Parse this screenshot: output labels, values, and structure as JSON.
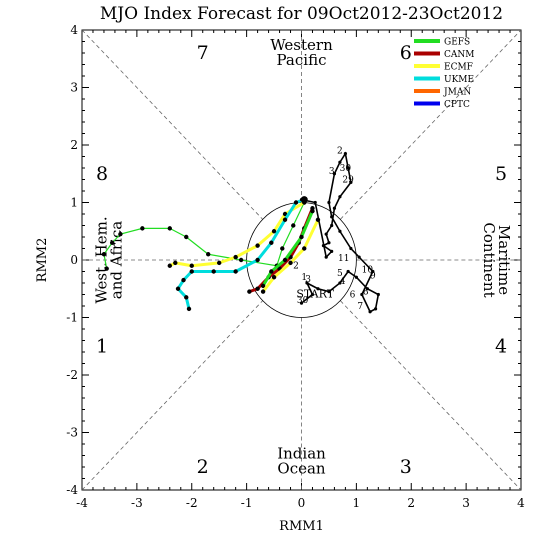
{
  "title": "MJO Index Forecast for 09Oct2012-23Oct2012",
  "chart_data": {
    "type": "scatter",
    "title": "MJO Index Forecast for 09Oct2012-23Oct2012",
    "xlabel": "RMM1",
    "ylabel": "RMM2",
    "xlim": [
      -4,
      4
    ],
    "ylim": [
      -4,
      4
    ],
    "xticks": [
      "-4",
      "-3",
      "-2",
      "-1",
      "0",
      "1",
      "2",
      "3",
      "4"
    ],
    "yticks": [
      "-4",
      "-3",
      "-2",
      "-1",
      "0",
      "1",
      "2",
      "3",
      "4"
    ],
    "unit_circle_radius": 1,
    "phase_numbers": [
      {
        "label": "7",
        "x": -1.8,
        "y": 3.6
      },
      {
        "label": "6",
        "x": 1.9,
        "y": 3.6
      },
      {
        "label": "8",
        "x": -4.2,
        "y": 1.5
      },
      {
        "label": "5",
        "x": 4.2,
        "y": 1.5
      },
      {
        "label": "1",
        "x": -4.2,
        "y": -1.5
      },
      {
        "label": "4",
        "x": 4.2,
        "y": -1.5
      },
      {
        "label": "2",
        "x": -1.8,
        "y": -3.6
      },
      {
        "label": "3",
        "x": 1.9,
        "y": -3.6
      }
    ],
    "regions": {
      "top": [
        "Western",
        "Pacific"
      ],
      "bottom": [
        "Indian",
        "Ocean"
      ],
      "left": [
        "West. Hem.",
        "and Africa"
      ],
      "right": [
        "Maritime",
        "Continent"
      ]
    },
    "start_label": "START",
    "legend": [
      {
        "name": "GEFS",
        "color": "#22dd22"
      },
      {
        "name": "CANM",
        "color": "#aa0000"
      },
      {
        "name": "ECMF",
        "color": "#ffff33"
      },
      {
        "name": "UKME",
        "color": "#00dddd"
      },
      {
        "name": "JMAN",
        "color": "#ff6600"
      },
      {
        "name": "CPTC",
        "color": "#0000ee"
      }
    ],
    "observed": {
      "color": "#000000",
      "points": [
        [
          0.0,
          -0.75
        ],
        [
          0.2,
          -0.6
        ],
        [
          0.1,
          -0.4
        ],
        [
          0.3,
          -0.5
        ],
        [
          0.5,
          -0.55
        ],
        [
          0.7,
          -0.4
        ],
        [
          0.85,
          -0.2
        ],
        [
          1.0,
          -0.3
        ],
        [
          1.2,
          -0.5
        ],
        [
          1.4,
          -0.6
        ],
        [
          1.35,
          -0.85
        ],
        [
          1.25,
          -0.9
        ],
        [
          1.1,
          -0.6
        ],
        [
          1.3,
          -0.2
        ],
        [
          1.05,
          0.05
        ],
        [
          0.9,
          0.2
        ],
        [
          0.7,
          0.5
        ],
        [
          0.55,
          0.75
        ],
        [
          0.5,
          1.0
        ],
        [
          0.6,
          1.5
        ],
        [
          0.7,
          1.7
        ],
        [
          0.8,
          1.85
        ],
        [
          0.85,
          1.6
        ],
        [
          0.9,
          1.35
        ],
        [
          0.7,
          1.1
        ],
        [
          0.6,
          0.9
        ],
        [
          0.55,
          0.6
        ],
        [
          0.45,
          0.45
        ],
        [
          0.5,
          0.3
        ],
        [
          0.4,
          0.25
        ],
        [
          0.55,
          0.15
        ],
        [
          0.45,
          0.05
        ],
        [
          0.25,
          1.0
        ],
        [
          0.0,
          1.05
        ]
      ],
      "day_labels": [
        {
          "text": "30",
          "x": 0.02,
          "y": -0.75
        },
        {
          "text": "2",
          "x": -0.1,
          "y": -0.15
        },
        {
          "text": "1",
          "x": 0.05,
          "y": -0.35
        },
        {
          "text": "3",
          "x": 0.12,
          "y": -0.38
        },
        {
          "text": "5",
          "x": 0.7,
          "y": -0.28
        },
        {
          "text": "10",
          "x": 1.2,
          "y": -0.22
        },
        {
          "text": "9",
          "x": 1.3,
          "y": -0.32
        },
        {
          "text": "8",
          "x": 1.17,
          "y": -0.6
        },
        {
          "text": "6",
          "x": 0.93,
          "y": -0.65
        },
        {
          "text": "7",
          "x": 1.07,
          "y": -0.85
        },
        {
          "text": "4",
          "x": 0.75,
          "y": -0.42
        },
        {
          "text": "11",
          "x": 0.77,
          "y": -0.02
        },
        {
          "text": "2",
          "x": 0.7,
          "y": 1.85
        },
        {
          "text": "30",
          "x": 0.8,
          "y": 1.55
        },
        {
          "text": "29",
          "x": 0.85,
          "y": 1.35
        },
        {
          "text": "3",
          "x": 0.55,
          "y": 1.5
        }
      ]
    },
    "series": [
      {
        "name": "GEFS",
        "color": "#22dd22",
        "points": [
          [
            0.05,
            1.0
          ],
          [
            -0.15,
            0.6
          ],
          [
            -0.35,
            0.2
          ],
          [
            -0.45,
            -0.1
          ],
          [
            -1.1,
            0.0
          ],
          [
            -1.7,
            0.1
          ],
          [
            -2.1,
            0.4
          ],
          [
            -2.4,
            0.55
          ],
          [
            -2.9,
            0.55
          ],
          [
            -3.3,
            0.45
          ],
          [
            -3.45,
            0.3
          ],
          [
            -3.6,
            0.1
          ],
          [
            -3.55,
            -0.15
          ]
        ]
      },
      {
        "name": "ECMF",
        "color": "#ffff33",
        "points": [
          [
            0.05,
            1.0
          ],
          [
            -0.3,
            0.8
          ],
          [
            -0.5,
            0.5
          ],
          [
            -0.8,
            0.25
          ],
          [
            -1.2,
            0.05
          ],
          [
            -1.5,
            -0.05
          ],
          [
            -2.0,
            -0.1
          ],
          [
            -2.3,
            -0.05
          ],
          [
            -2.4,
            -0.1
          ]
        ]
      },
      {
        "name": "UKME",
        "color": "#00dddd",
        "points": [
          [
            0.05,
            1.05
          ],
          [
            -0.1,
            1.0
          ],
          [
            -0.3,
            0.7
          ],
          [
            -0.55,
            0.3
          ],
          [
            -0.8,
            0.0
          ],
          [
            -1.2,
            -0.2
          ],
          [
            -1.6,
            -0.2
          ],
          [
            -2.0,
            -0.2
          ],
          [
            -2.15,
            -0.35
          ],
          [
            -2.25,
            -0.5
          ],
          [
            -2.1,
            -0.65
          ],
          [
            -2.05,
            -0.85
          ]
        ]
      },
      {
        "name": "CANM",
        "color": "#aa0000",
        "points": [
          [
            0.2,
            0.9
          ],
          [
            0.05,
            0.55
          ],
          [
            -0.05,
            0.3
          ],
          [
            -0.2,
            0.05
          ],
          [
            -0.4,
            -0.15
          ],
          [
            -0.6,
            -0.3
          ],
          [
            -0.8,
            -0.5
          ],
          [
            -0.95,
            -0.55
          ]
        ]
      },
      {
        "name": "GEFS",
        "color": "#22dd22",
        "points": [
          [
            0.2,
            0.85
          ],
          [
            0.0,
            0.4
          ],
          [
            -0.3,
            0.0
          ],
          [
            -0.55,
            -0.2
          ],
          [
            -0.7,
            -0.45
          ]
        ]
      },
      {
        "name": "ECMF",
        "color": "#ffff33",
        "points": [
          [
            0.3,
            0.7
          ],
          [
            0.05,
            0.2
          ],
          [
            -0.2,
            -0.05
          ],
          [
            -0.5,
            -0.3
          ],
          [
            -0.7,
            -0.55
          ]
        ]
      }
    ]
  }
}
